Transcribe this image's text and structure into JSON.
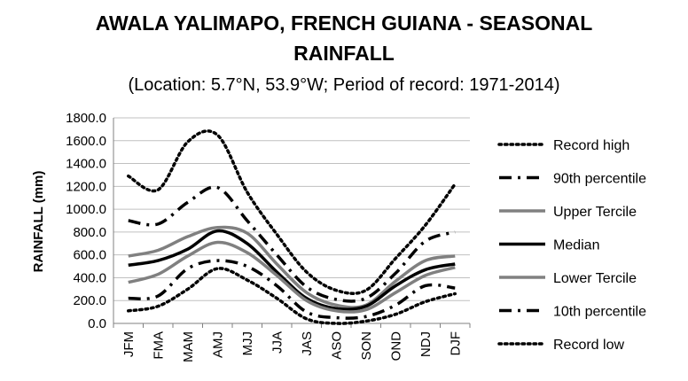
{
  "chart_data": {
    "type": "line",
    "title_line1": "AWALA YALIMAPO, FRENCH GUIANA - SEASONAL",
    "title_line2": "RAINFALL",
    "subtitle": "(Location: 5.7°N, 53.9°W; Period of record: 1971-2014)",
    "xlabel": "",
    "ylabel": "RAINFALL (mm)",
    "ylim": [
      0,
      1800
    ],
    "y_ticks": [
      "0.0",
      "200.0",
      "400.0",
      "600.0",
      "800.0",
      "1000.0",
      "1200.0",
      "1400.0",
      "1600.0",
      "1800.0"
    ],
    "categories": [
      "JFM",
      "FMA",
      "MAM",
      "AMJ",
      "MJJ",
      "JJA",
      "JAS",
      "ASO",
      "SON",
      "OND",
      "NDJ",
      "DJF"
    ],
    "grid": true,
    "legend_position": "right",
    "series": [
      {
        "name": "Record high",
        "style": "dotted",
        "color": "#000000",
        "values": [
          1290,
          1170,
          1590,
          1650,
          1150,
          780,
          450,
          290,
          290,
          570,
          860,
          1220
        ]
      },
      {
        "name": "90th percentile",
        "style": "dashdot",
        "color": "#000000",
        "values": [
          900,
          870,
          1060,
          1190,
          900,
          600,
          320,
          210,
          220,
          440,
          720,
          800
        ]
      },
      {
        "name": "Upper Tercile",
        "style": "solid",
        "color": "#808080",
        "values": [
          590,
          640,
          760,
          840,
          790,
          520,
          270,
          160,
          160,
          370,
          550,
          590
        ]
      },
      {
        "name": "Median",
        "style": "solid",
        "color": "#000000",
        "values": [
          510,
          550,
          650,
          810,
          700,
          450,
          220,
          130,
          150,
          330,
          470,
          520
        ]
      },
      {
        "name": "Lower Tercile",
        "style": "solid",
        "color": "#808080",
        "values": [
          360,
          430,
          590,
          710,
          620,
          420,
          200,
          110,
          120,
          270,
          420,
          490
        ]
      },
      {
        "name": "10th percentile",
        "style": "dashdot",
        "color": "#000000",
        "values": [
          220,
          240,
          480,
          550,
          500,
          330,
          100,
          50,
          60,
          160,
          330,
          310
        ]
      },
      {
        "name": "Record low",
        "style": "dotted",
        "color": "#000000",
        "values": [
          110,
          150,
          300,
          480,
          380,
          220,
          40,
          0,
          20,
          80,
          190,
          260
        ]
      }
    ]
  }
}
